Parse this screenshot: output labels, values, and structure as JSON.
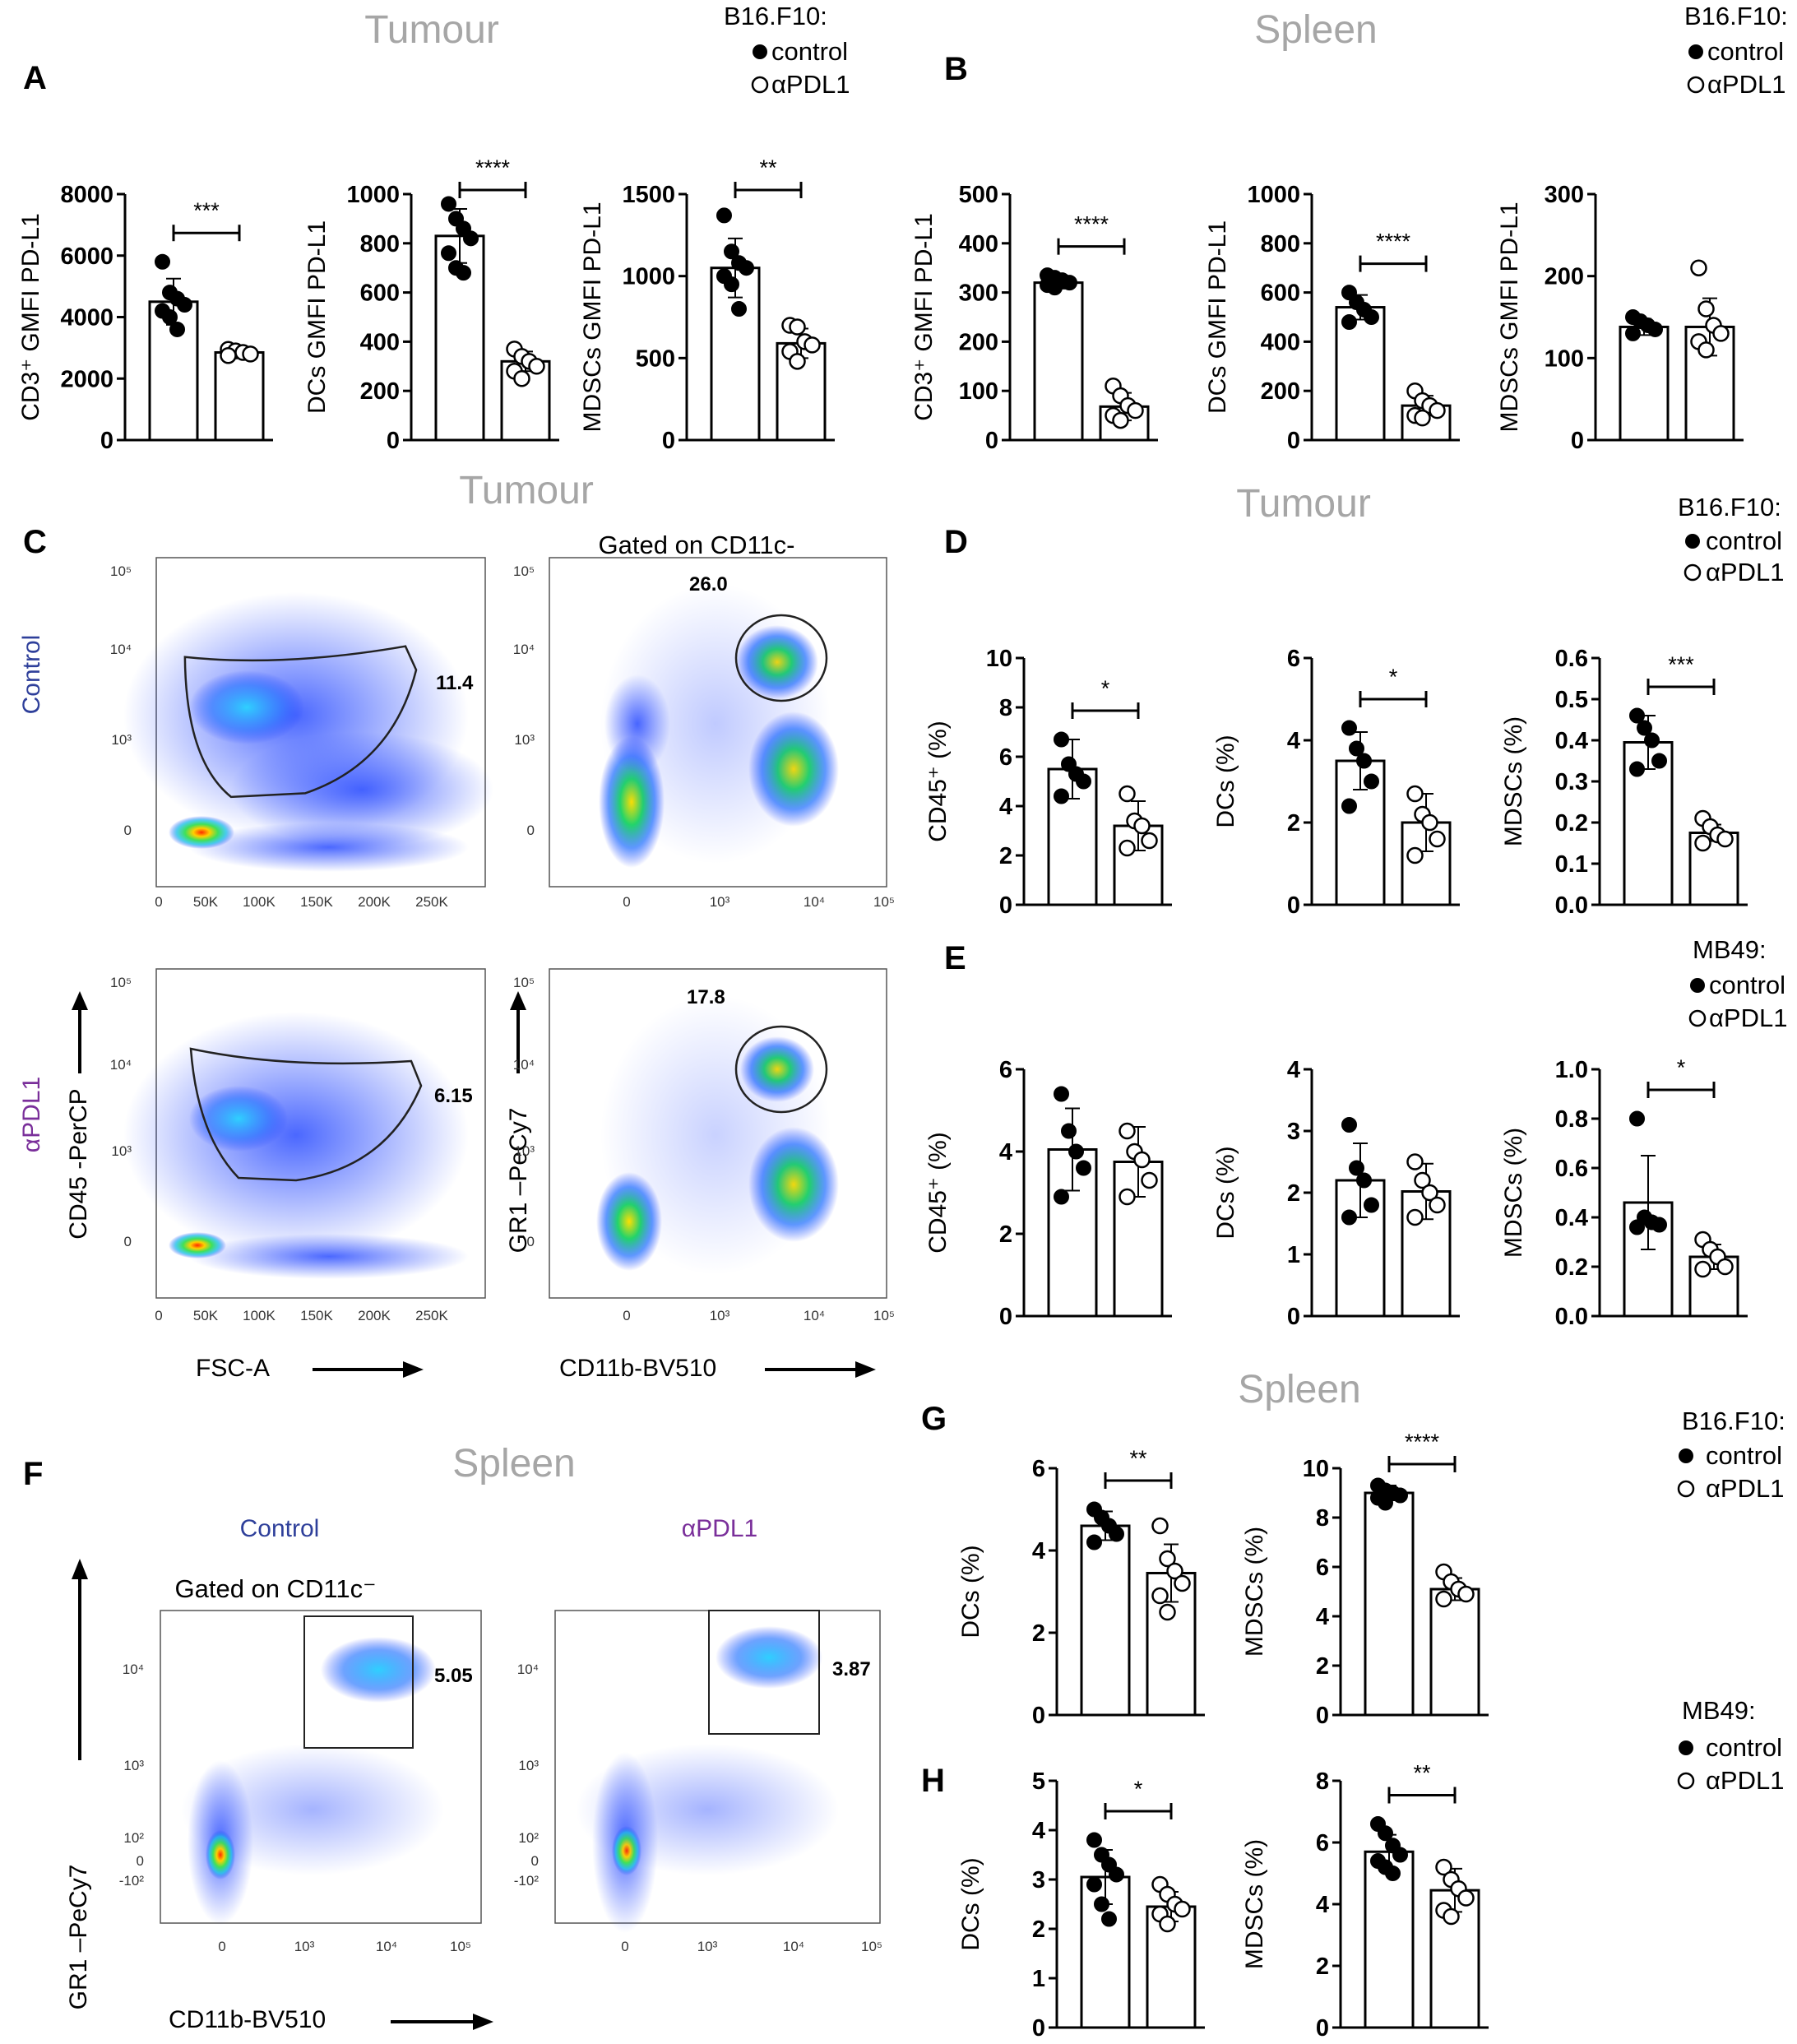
{
  "section_titles": {
    "tumour_ab": "Tumour",
    "spleen_ab": "Spleen",
    "tumour_c": "Tumour",
    "tumour_d": "Tumour",
    "spleen_g": "Spleen",
    "spleen_f": "Spleen"
  },
  "panel_letters": {
    "A": "A",
    "B": "B",
    "C": "C",
    "D": "D",
    "E": "E",
    "F": "F",
    "G": "G",
    "H": "H"
  },
  "legends": {
    "a": {
      "title": "B16.F10:",
      "control": "control",
      "treated": "αPDL1"
    },
    "b": {
      "title": "B16.F10:",
      "control": "control",
      "treated": "αPDL1"
    },
    "d": {
      "title": "B16.F10:",
      "control": "control",
      "treated": "αPDL1"
    },
    "e": {
      "title": "MB49:",
      "control": "control",
      "treated": "αPDL1"
    },
    "g": {
      "title": "B16.F10:",
      "control": "control",
      "treated": "αPDL1"
    },
    "h": {
      "title": "MB49:",
      "control": "control",
      "treated": "αPDL1"
    }
  },
  "colors": {
    "control_label": "#2e3f9a",
    "apdl1_label": "#7a2f9a",
    "section_title": "#a6a6a6"
  },
  "chart_data": [
    {
      "id": "A1",
      "type": "bar",
      "panel": "A",
      "ylabel": "CD3⁺ GMFI PD-L1",
      "ylim": [
        0,
        8000
      ],
      "yticks": [
        0,
        2000,
        4000,
        6000,
        8000
      ],
      "tick_labels": [
        "0",
        "2000",
        "4000",
        "6000",
        "8000"
      ],
      "categories": [
        "control",
        "αPDL1"
      ],
      "values": [
        4500,
        2850
      ],
      "errors": [
        750,
        150
      ],
      "points": [
        [
          5800,
          4800,
          4600,
          4400,
          4200,
          4000,
          3600
        ],
        [
          2950,
          2900,
          2850,
          2800,
          2750
        ]
      ],
      "sig": "***"
    },
    {
      "id": "A2",
      "type": "bar",
      "panel": "A",
      "ylabel": "DCs  GMFI PD-L1",
      "ylim": [
        0,
        1000
      ],
      "yticks": [
        0,
        200,
        400,
        600,
        800,
        1000
      ],
      "tick_labels": [
        "0",
        "200",
        "400",
        "600",
        "800",
        "1000"
      ],
      "categories": [
        "control",
        "αPDL1"
      ],
      "values": [
        830,
        320
      ],
      "errors": [
        110,
        40
      ],
      "points": [
        [
          960,
          900,
          860,
          820,
          760,
          700,
          680
        ],
        [
          370,
          340,
          320,
          300,
          280,
          250
        ]
      ],
      "sig": "****"
    },
    {
      "id": "A3",
      "type": "bar",
      "panel": "A",
      "ylabel": "MDSCs  GMFI PD-L1",
      "ylim": [
        0,
        1500
      ],
      "yticks": [
        0,
        500,
        1000,
        1500
      ],
      "tick_labels": [
        "0",
        "500",
        "1000",
        "1500"
      ],
      "categories": [
        "control",
        "αPDL1"
      ],
      "values": [
        1050,
        590
      ],
      "errors": [
        180,
        90
      ],
      "points": [
        [
          1370,
          1150,
          1080,
          1050,
          1000,
          950,
          800
        ],
        [
          700,
          690,
          600,
          580,
          540,
          480
        ]
      ],
      "sig": "**"
    },
    {
      "id": "B1",
      "type": "bar",
      "panel": "B",
      "ylabel": "CD3⁺ GMFI PD-L1",
      "ylim": [
        0,
        500
      ],
      "yticks": [
        0,
        100,
        200,
        300,
        400,
        500
      ],
      "tick_labels": [
        "0",
        "100",
        "200",
        "300",
        "400",
        "500"
      ],
      "categories": [
        "control",
        "αPDL1"
      ],
      "values": [
        320,
        68
      ],
      "errors": [
        12,
        28
      ],
      "points": [
        [
          335,
          330,
          325,
          320,
          315,
          310
        ],
        [
          110,
          90,
          70,
          60,
          50,
          40
        ]
      ],
      "sig": "****"
    },
    {
      "id": "B2",
      "type": "bar",
      "panel": "B",
      "ylabel": "DCs  GMFI PD-L1",
      "ylim": [
        0,
        1000
      ],
      "yticks": [
        0,
        200,
        400,
        600,
        800,
        1000
      ],
      "tick_labels": [
        "0",
        "200",
        "400",
        "600",
        "800",
        "1000"
      ],
      "categories": [
        "control",
        "αPDL1"
      ],
      "values": [
        540,
        140
      ],
      "errors": [
        50,
        40
      ],
      "points": [
        [
          600,
          560,
          530,
          500,
          480
        ],
        [
          200,
          160,
          140,
          120,
          100,
          90
        ]
      ],
      "sig": "****"
    },
    {
      "id": "B3",
      "type": "bar",
      "panel": "B",
      "ylabel": "MDSCs  GMFI PD-L1",
      "ylim": [
        0,
        300
      ],
      "yticks": [
        0,
        100,
        200,
        300
      ],
      "tick_labels": [
        "0",
        "100",
        "200",
        "300"
      ],
      "categories": [
        "control",
        "αPDL1"
      ],
      "values": [
        138,
        138
      ],
      "errors": [
        10,
        35
      ],
      "points": [
        [
          150,
          145,
          140,
          135,
          130
        ],
        [
          210,
          160,
          140,
          130,
          120,
          110
        ]
      ],
      "sig": ""
    },
    {
      "id": "D1",
      "type": "bar",
      "panel": "D",
      "ylabel": "CD45⁺ (%)",
      "ylim": [
        0,
        10
      ],
      "yticks": [
        0,
        2,
        4,
        6,
        8,
        10
      ],
      "tick_labels": [
        "0",
        "2",
        "4",
        "6",
        "8",
        "10"
      ],
      "categories": [
        "control",
        "αPDL1"
      ],
      "values": [
        5.5,
        3.2
      ],
      "errors": [
        1.2,
        1.0
      ],
      "points": [
        [
          6.7,
          5.7,
          5.3,
          5.0,
          4.4
        ],
        [
          4.5,
          3.4,
          3.2,
          2.6,
          2.3
        ]
      ],
      "sig": "*"
    },
    {
      "id": "D2",
      "type": "bar",
      "panel": "D",
      "ylabel": "DCs (%)",
      "ylim": [
        0,
        6
      ],
      "yticks": [
        0,
        2,
        4,
        6
      ],
      "tick_labels": [
        "0",
        "2",
        "4",
        "6"
      ],
      "categories": [
        "control",
        "αPDL1"
      ],
      "values": [
        3.5,
        2.0
      ],
      "errors": [
        0.7,
        0.7
      ],
      "points": [
        [
          4.3,
          3.8,
          3.5,
          3.0,
          2.4
        ],
        [
          2.7,
          2.2,
          2.0,
          1.6,
          1.2
        ]
      ],
      "sig": "*"
    },
    {
      "id": "D3",
      "type": "bar",
      "panel": "D",
      "ylabel": "MDSCs (%)",
      "ylim": [
        0,
        0.6
      ],
      "yticks": [
        0,
        0.1,
        0.2,
        0.3,
        0.4,
        0.5,
        0.6
      ],
      "tick_labels": [
        "0.0",
        "0.1",
        "0.2",
        "0.3",
        "0.4",
        "0.5",
        "0.6"
      ],
      "categories": [
        "control",
        "αPDL1"
      ],
      "values": [
        0.395,
        0.175
      ],
      "errors": [
        0.065,
        0.02
      ],
      "points": [
        [
          0.46,
          0.43,
          0.4,
          0.35,
          0.33
        ],
        [
          0.21,
          0.19,
          0.17,
          0.16,
          0.15
        ]
      ],
      "sig": "***"
    },
    {
      "id": "E1",
      "type": "bar",
      "panel": "E",
      "ylabel": "CD45⁺ (%)",
      "ylim": [
        0,
        6
      ],
      "yticks": [
        0,
        2,
        4,
        6
      ],
      "tick_labels": [
        "0",
        "2",
        "4",
        "6"
      ],
      "categories": [
        "control",
        "αPDL1"
      ],
      "values": [
        4.05,
        3.75
      ],
      "errors": [
        1.0,
        0.85
      ],
      "points": [
        [
          5.4,
          4.5,
          4.0,
          3.6,
          2.9
        ],
        [
          4.5,
          4.0,
          3.8,
          3.3,
          2.9
        ]
      ],
      "sig": ""
    },
    {
      "id": "E2",
      "type": "bar",
      "panel": "E",
      "ylabel": "DCs (%)",
      "ylim": [
        0,
        4
      ],
      "yticks": [
        0,
        1,
        2,
        3,
        4
      ],
      "tick_labels": [
        "0",
        "1",
        "2",
        "3",
        "4"
      ],
      "categories": [
        "control",
        "αPDL1"
      ],
      "values": [
        2.2,
        2.02
      ],
      "errors": [
        0.6,
        0.45
      ],
      "points": [
        [
          3.1,
          2.4,
          2.2,
          1.8,
          1.6
        ],
        [
          2.5,
          2.2,
          2.0,
          1.8,
          1.6
        ]
      ],
      "sig": ""
    },
    {
      "id": "E3",
      "type": "bar",
      "panel": "E",
      "ylabel": "MDSCs (%)",
      "ylim": [
        0,
        1.0
      ],
      "yticks": [
        0,
        0.2,
        0.4,
        0.6,
        0.8,
        1.0
      ],
      "tick_labels": [
        "0.0",
        "0.2",
        "0.4",
        "0.6",
        "0.8",
        "1.0"
      ],
      "categories": [
        "control",
        "αPDL1"
      ],
      "values": [
        0.46,
        0.24
      ],
      "errors": [
        0.19,
        0.05
      ],
      "points": [
        [
          0.8,
          0.4,
          0.38,
          0.37,
          0.36
        ],
        [
          0.31,
          0.27,
          0.24,
          0.2,
          0.19
        ]
      ],
      "sig": "*"
    },
    {
      "id": "G1",
      "type": "bar",
      "panel": "G",
      "ylabel": "DCs (%)",
      "ylim": [
        0,
        6
      ],
      "yticks": [
        0,
        2,
        4,
        6
      ],
      "tick_labels": [
        "0",
        "2",
        "4",
        "6"
      ],
      "categories": [
        "control",
        "αPDL1"
      ],
      "values": [
        4.6,
        3.45
      ],
      "errors": [
        0.35,
        0.7
      ],
      "points": [
        [
          5.0,
          4.8,
          4.6,
          4.4,
          4.2
        ],
        [
          4.6,
          3.8,
          3.5,
          3.2,
          2.9,
          2.5
        ]
      ],
      "sig": "**"
    },
    {
      "id": "G2",
      "type": "bar",
      "panel": "G",
      "ylabel": "MDSCs (%)",
      "ylim": [
        0,
        10
      ],
      "yticks": [
        0,
        2,
        4,
        6,
        8,
        10
      ],
      "tick_labels": [
        "0",
        "2",
        "4",
        "6",
        "8",
        "10"
      ],
      "categories": [
        "control",
        "αPDL1"
      ],
      "values": [
        9.0,
        5.1
      ],
      "errors": [
        0.3,
        0.45
      ],
      "points": [
        [
          9.3,
          9.1,
          9.0,
          8.9,
          8.8,
          8.6
        ],
        [
          5.8,
          5.4,
          5.1,
          4.9,
          4.7
        ]
      ],
      "sig": "****"
    },
    {
      "id": "H1",
      "type": "bar",
      "panel": "H",
      "ylabel": "DCs (%)",
      "ylim": [
        0,
        5
      ],
      "yticks": [
        0,
        1,
        2,
        3,
        4,
        5
      ],
      "tick_labels": [
        "0",
        "1",
        "2",
        "3",
        "4",
        "5"
      ],
      "categories": [
        "control",
        "αPDL1"
      ],
      "values": [
        3.05,
        2.45
      ],
      "errors": [
        0.55,
        0.3
      ],
      "points": [
        [
          3.8,
          3.5,
          3.3,
          3.1,
          2.9,
          2.5,
          2.2
        ],
        [
          2.9,
          2.7,
          2.5,
          2.4,
          2.3,
          2.1
        ]
      ],
      "sig": "*"
    },
    {
      "id": "H2",
      "type": "bar",
      "panel": "H",
      "ylabel": "MDSCs (%)",
      "ylim": [
        0,
        8
      ],
      "yticks": [
        0,
        2,
        4,
        6,
        8
      ],
      "tick_labels": [
        "0",
        "2",
        "4",
        "6",
        "8"
      ],
      "categories": [
        "control",
        "αPDL1"
      ],
      "values": [
        5.7,
        4.45
      ],
      "errors": [
        0.55,
        0.7
      ],
      "points": [
        [
          6.6,
          6.3,
          5.9,
          5.6,
          5.4,
          5.2,
          5.0
        ],
        [
          5.2,
          4.8,
          4.5,
          4.2,
          3.8,
          3.6
        ]
      ],
      "sig": "**"
    }
  ],
  "flow_c": {
    "row_labels": {
      "control": "Control",
      "apdl1": "αPDL1"
    },
    "gated_label": "Gated on CD11c-",
    "gate_values": {
      "ctrl_left": "11.4",
      "ctrl_right": "26.0",
      "pdl1_left": "6.15",
      "pdl1_right": "17.8"
    },
    "x_ticks_left": [
      "0",
      "50K",
      "100K",
      "150K",
      "200K",
      "250K"
    ],
    "x_ticks_right": [
      "0",
      "10³",
      "10⁴",
      "10⁵"
    ],
    "y_ticks": [
      "0",
      "10³",
      "10⁴",
      "10⁵"
    ],
    "y_axis_left": "CD45 -PerCP",
    "x_axis_left": "FSC-A",
    "y_axis_right": "GR1 –PeCy7",
    "x_axis_right": "CD11b-BV510"
  },
  "flow_f": {
    "control_label": "Control",
    "apdl1_label": "αPDL1",
    "gated_label": "Gated on CD11c⁻",
    "gate_values": {
      "control": "5.05",
      "apdl1": "3.87"
    },
    "x_ticks": [
      "0",
      "10³",
      "10⁴",
      "10⁵"
    ],
    "y_ticks": [
      "10⁴",
      "10³",
      "10²",
      "0",
      "-10²"
    ],
    "y_axis": "GR1 –PeCy7",
    "x_axis": "CD11b-BV510"
  }
}
